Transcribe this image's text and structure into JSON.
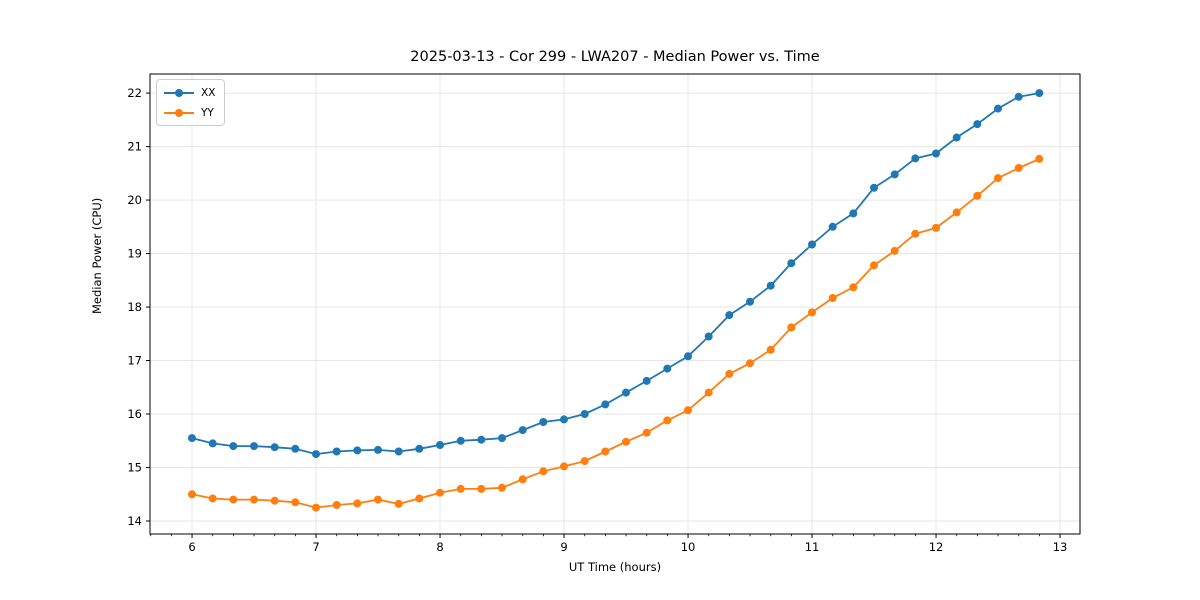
{
  "figure": {
    "background": "#ffffff",
    "text_color": "#000000",
    "grid_color": "#e6e6e6",
    "spine_color": "#000000"
  },
  "chart_data": {
    "type": "line",
    "title": "2025-03-13 - Cor 299 - LWA207 - Median Power vs. Time",
    "xlabel": "UT Time (hours)",
    "ylabel": "Median Power (CPU)",
    "xlim": [
      5.661,
      13.161
    ],
    "ylim": [
      13.757,
      22.357
    ],
    "xticks": [
      6,
      7,
      8,
      9,
      10,
      11,
      12,
      13
    ],
    "yticks": [
      14,
      15,
      16,
      17,
      18,
      19,
      20,
      21,
      22
    ],
    "x_minor_interval": 0.16667,
    "grid": true,
    "legend_position": "upper-left",
    "marker": "circle",
    "x": [
      6.0,
      6.167,
      6.333,
      6.5,
      6.667,
      6.833,
      7.0,
      7.167,
      7.333,
      7.5,
      7.667,
      7.833,
      8.0,
      8.167,
      8.333,
      8.5,
      8.667,
      8.833,
      9.0,
      9.167,
      9.333,
      9.5,
      9.667,
      9.833,
      10.0,
      10.167,
      10.333,
      10.5,
      10.667,
      10.833,
      11.0,
      11.167,
      11.333,
      11.5,
      11.667,
      11.833,
      12.0,
      12.167,
      12.333,
      12.5,
      12.667,
      12.833
    ],
    "series": [
      {
        "name": "XX",
        "color": "#1f77b4",
        "values": [
          15.55,
          15.45,
          15.4,
          15.4,
          15.38,
          15.35,
          15.25,
          15.3,
          15.32,
          15.33,
          15.3,
          15.35,
          15.42,
          15.5,
          15.52,
          15.55,
          15.7,
          15.85,
          15.9,
          16.0,
          16.18,
          16.4,
          16.62,
          16.85,
          17.08,
          17.45,
          17.85,
          18.1,
          18.4,
          18.82,
          19.17,
          19.5,
          19.75,
          20.23,
          20.48,
          20.78,
          20.87,
          21.17,
          21.42,
          21.71,
          21.93,
          22.0
        ]
      },
      {
        "name": "YY",
        "color": "#ff7f0e",
        "values": [
          14.5,
          14.42,
          14.4,
          14.4,
          14.38,
          14.35,
          14.25,
          14.3,
          14.33,
          14.4,
          14.32,
          14.42,
          14.53,
          14.6,
          14.6,
          14.62,
          14.78,
          14.93,
          15.02,
          15.12,
          15.3,
          15.48,
          15.65,
          15.88,
          16.07,
          16.4,
          16.75,
          16.95,
          17.2,
          17.62,
          17.9,
          18.17,
          18.37,
          18.78,
          19.05,
          19.37,
          19.48,
          19.77,
          20.08,
          20.41,
          20.6,
          20.77
        ]
      }
    ]
  }
}
